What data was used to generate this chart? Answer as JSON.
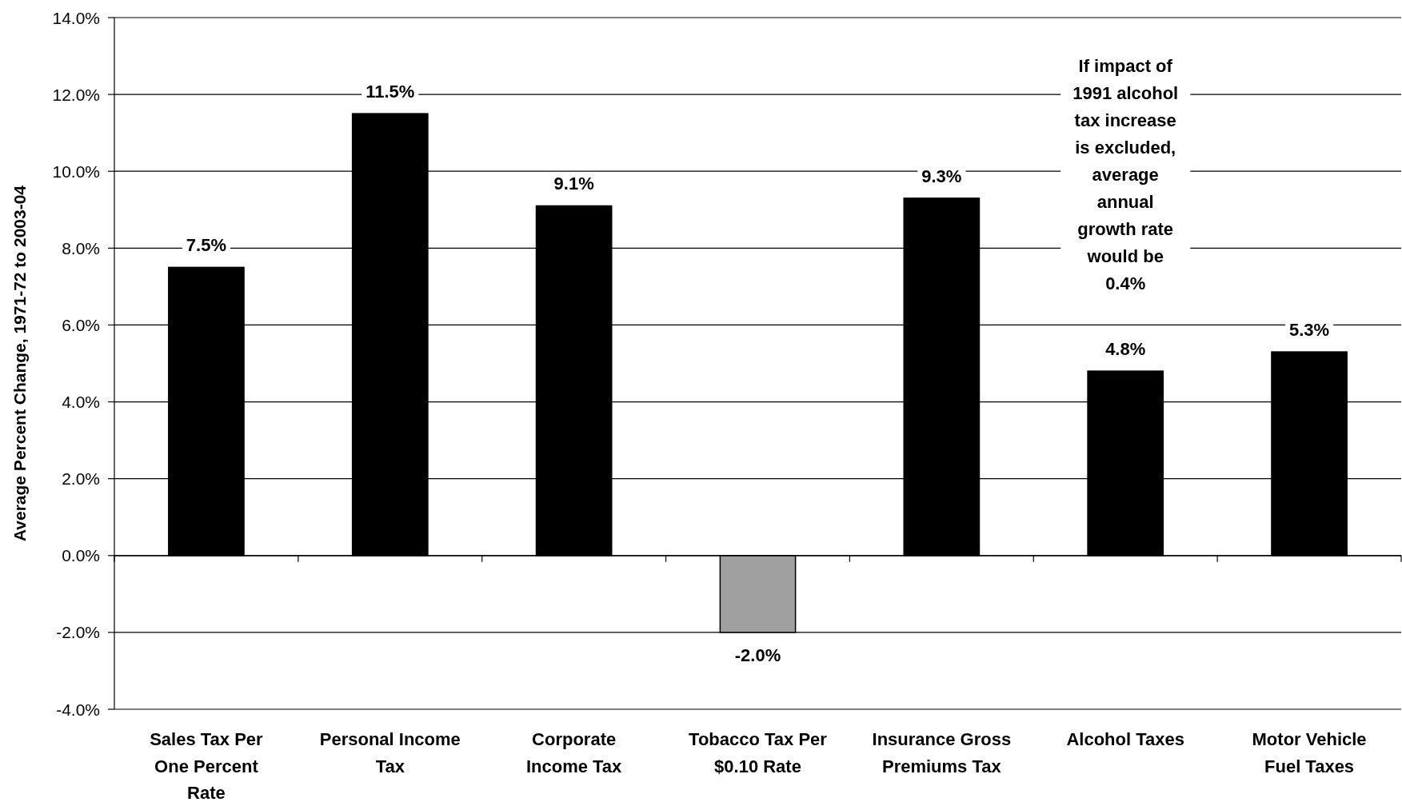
{
  "chart_data": {
    "type": "bar",
    "categories": [
      "Sales Tax Per One Percent Rate",
      "Personal Income Tax",
      "Corporate Income Tax",
      "Tobacco Tax Per $0.10 Rate",
      "Insurance Gross Premiums Tax",
      "Alcohol Taxes",
      "Motor Vehicle Fuel Taxes"
    ],
    "values": [
      7.5,
      11.5,
      9.1,
      -2.0,
      9.3,
      4.8,
      5.3
    ],
    "colors": [
      "#000000",
      "#000000",
      "#000000",
      "#a0a0a0",
      "#000000",
      "#000000",
      "#000000"
    ],
    "value_labels": [
      "7.5%",
      "11.5%",
      "9.1%",
      "-2.0%",
      "9.3%",
      "4.8%",
      "5.3%"
    ],
    "ylabel": "Average Percent Change, 1971-72 to 2003-04",
    "ylim": [
      -4,
      14
    ],
    "yticks": [
      {
        "value": -4,
        "label": "-4.0%"
      },
      {
        "value": -2,
        "label": "-2.0%"
      },
      {
        "value": 0,
        "label": "0.0%"
      },
      {
        "value": 2,
        "label": "2.0%"
      },
      {
        "value": 4,
        "label": "4.0%"
      },
      {
        "value": 6,
        "label": "6.0%"
      },
      {
        "value": 8,
        "label": "8.0%"
      },
      {
        "value": 10,
        "label": "10.0%"
      },
      {
        "value": 12,
        "label": "12.0%"
      },
      {
        "value": 14,
        "label": "14.0%"
      }
    ],
    "grid": "y",
    "annotations": [
      "If impact of 1991 alcohol tax increase is excluded, average annual growth rate would be 0.4%"
    ]
  }
}
